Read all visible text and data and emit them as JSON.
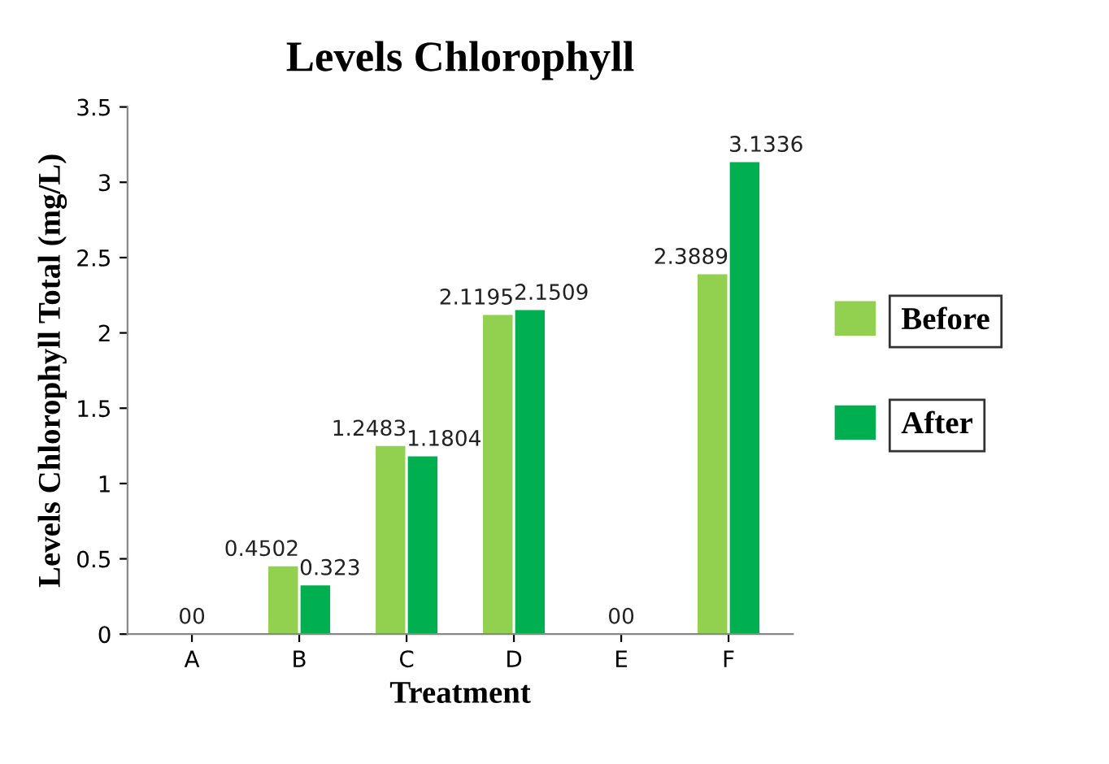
{
  "chart_data": {
    "type": "bar",
    "title": "Levels Chlorophyll",
    "xlabel": "Treatment",
    "ylabel": "Levels Chlorophyll Total (mg/L)",
    "categories": [
      "A",
      "B",
      "C",
      "D",
      "E",
      "F"
    ],
    "series": [
      {
        "name": "Before",
        "color": "#92d050",
        "values": [
          0,
          0.4502,
          1.2483,
          2.1195,
          0,
          2.3889
        ]
      },
      {
        "name": "After",
        "color": "#00b050",
        "values": [
          0,
          0.323,
          1.1804,
          2.1509,
          0,
          3.1336
        ]
      }
    ],
    "ylim": [
      0,
      3.5
    ],
    "yticks": [
      0,
      0.5,
      1,
      1.5,
      2,
      2.5,
      3,
      3.5
    ],
    "grid": false,
    "legend": "right",
    "data_labels": true
  }
}
